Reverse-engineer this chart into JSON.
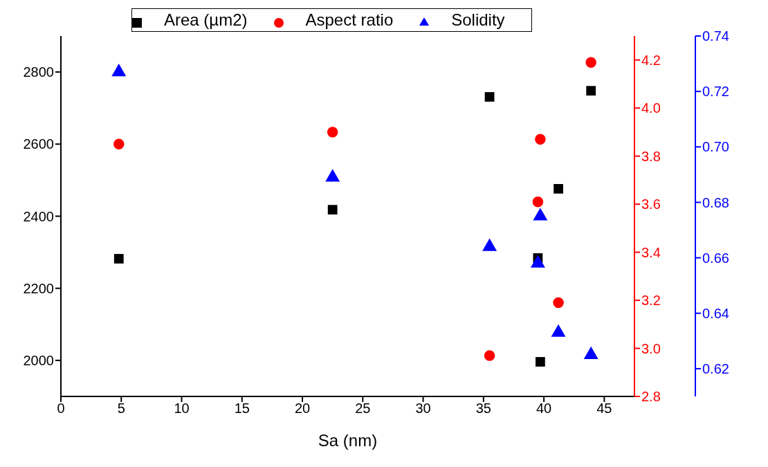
{
  "chart_data": {
    "type": "scatter",
    "xlabel": "Sa (nm)",
    "legend": "top",
    "x": [
      4.8,
      22.5,
      35.5,
      39.5,
      39.7,
      41.2,
      43.9
    ],
    "series": [
      {
        "name": "Area (µm2)",
        "color": "#000000",
        "marker": "square",
        "values": [
          2282,
          2418,
          2731,
          2284,
          1996,
          2476,
          2748
        ]
      },
      {
        "name": "Aspect ratio",
        "color": "#ff0000",
        "marker": "circle",
        "axis": "y2",
        "x": [
          4.8,
          22.5,
          35.5,
          39.5,
          39.7,
          41.2,
          43.9
        ],
        "values": [
          3.85,
          3.9,
          2.97,
          3.61,
          3.87,
          3.19,
          4.19
        ]
      },
      {
        "name": "Solidity",
        "color": "#0000ff",
        "marker": "triangle",
        "axis": "y3",
        "values": [
          0.727,
          0.689,
          0.664,
          0.658,
          0.675,
          0.633,
          0.625
        ]
      }
    ],
    "xlim": [
      0,
      47.5
    ],
    "xticks": [
      0,
      5,
      10,
      15,
      20,
      25,
      30,
      35,
      40,
      45
    ],
    "ylim": [
      1900,
      2900
    ],
    "yticks": [
      2000,
      2200,
      2400,
      2600,
      2800
    ],
    "y2lim": [
      2.8,
      4.3
    ],
    "y2ticks": [
      2.8,
      {
        "value": 3,
        "label": "3.0"
      },
      3.2,
      3.4,
      3.6,
      3.8,
      {
        "value": 4,
        "label": "4.0"
      },
      4.2
    ],
    "y3lim": [
      0.61,
      0.74
    ],
    "y3ticks": [
      0.62,
      0.64,
      0.66,
      0.68,
      {
        "value": 0.7,
        "label": "0.70"
      },
      0.72,
      0.74
    ],
    "grid": false
  }
}
